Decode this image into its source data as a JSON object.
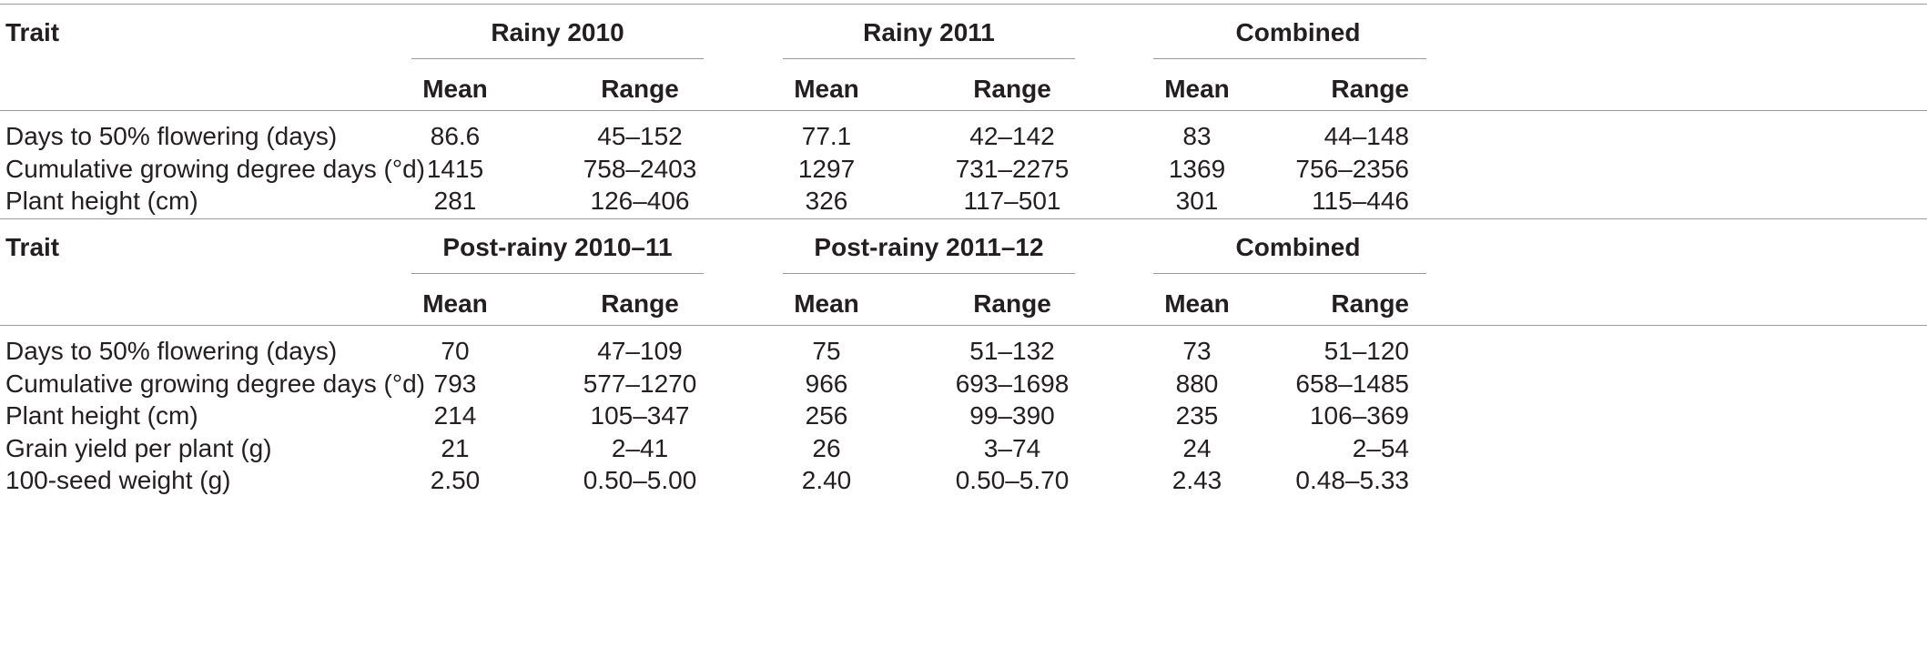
{
  "sections": [
    {
      "trait_header": "Trait",
      "groups": [
        "Rainy 2010",
        "Rainy 2011",
        "Combined"
      ],
      "subheaders": [
        "Mean",
        "Range",
        "Mean",
        "Range",
        "Mean",
        "Range"
      ],
      "rows": [
        {
          "trait": "Days to 50% flowering (days)",
          "values": [
            "86.6",
            "45–152",
            "77.1",
            "42–142",
            "83",
            "44–148"
          ]
        },
        {
          "trait": "Cumulative growing degree days (°d)",
          "values": [
            "1415",
            "758–2403",
            "1297",
            "731–2275",
            "1369",
            "756–2356"
          ]
        },
        {
          "trait": "Plant height (cm)",
          "values": [
            "281",
            "126–406",
            "326",
            "117–501",
            "301",
            "115–446"
          ]
        }
      ]
    },
    {
      "trait_header": "Trait",
      "groups": [
        "Post-rainy 2010–11",
        "Post-rainy 2011–12",
        "Combined"
      ],
      "subheaders": [
        "Mean",
        "Range",
        "Mean",
        "Range",
        "Mean",
        "Range"
      ],
      "rows": [
        {
          "trait": "Days to 50% flowering (days)",
          "values": [
            "70",
            "47–109",
            "75",
            "51–132",
            "73",
            "51–120"
          ]
        },
        {
          "trait": "Cumulative growing degree days (°d)",
          "values": [
            "793",
            "577–1270",
            "966",
            "693–1698",
            "880",
            "658–1485"
          ]
        },
        {
          "trait": "Plant height (cm)",
          "values": [
            "214",
            "105–347",
            "256",
            "99–390",
            "235",
            "106–369"
          ]
        },
        {
          "trait": "Grain yield per plant (g)",
          "values": [
            "21",
            "2–41",
            "26",
            "3–74",
            "24",
            "2–54"
          ]
        },
        {
          "trait": "100-seed weight (g)",
          "values": [
            "2.50",
            "0.50–5.00",
            "2.40",
            "0.50–5.70",
            "2.43",
            "0.48–5.33"
          ]
        }
      ]
    }
  ]
}
